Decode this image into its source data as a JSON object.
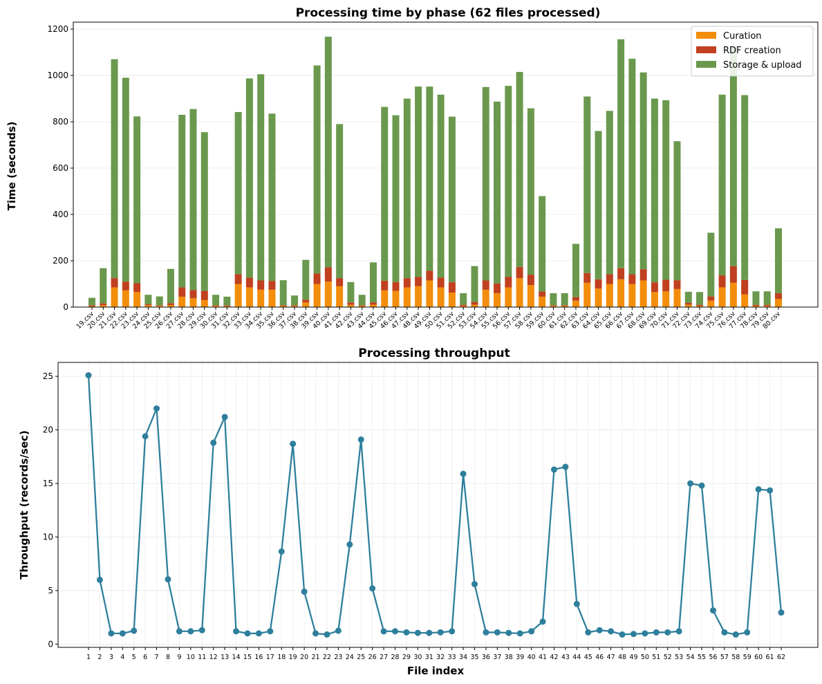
{
  "chart_data": [
    {
      "type": "bar",
      "stacked": true,
      "title": "Processing time by phase (62 files processed)",
      "xlabel": "",
      "ylabel": "Time (seconds)",
      "ylim": [
        0,
        1230
      ],
      "yticks": [
        0,
        200,
        400,
        600,
        800,
        1000,
        1200
      ],
      "grid": true,
      "legend_position": "top-right",
      "categories": [
        "19.csv",
        "20.csv",
        "21.csv",
        "22.csv",
        "23.csv",
        "24.csv",
        "25.csv",
        "26.csv",
        "27.csv",
        "28.csv",
        "29.csv",
        "30.csv",
        "31.csv",
        "32.csv",
        "33.csv",
        "34.csv",
        "35.csv",
        "36.csv",
        "37.csv",
        "38.csv",
        "39.csv",
        "40.csv",
        "41.csv",
        "42.csv",
        "43.csv",
        "44.csv",
        "45.csv",
        "46.csv",
        "47.csv",
        "48.csv",
        "49.csv",
        "50.csv",
        "51.csv",
        "52.csv",
        "53.csv",
        "54.csv",
        "55.csv",
        "56.csv",
        "57.csv",
        "58.csv",
        "59.csv",
        "60.csv",
        "61.csv",
        "62.csv",
        "63.csv",
        "64.csv",
        "65.csv",
        "66.csv",
        "67.csv",
        "68.csv",
        "69.csv",
        "70.csv",
        "71.csv",
        "72.csv",
        "73.csv",
        "74.csv",
        "75.csv",
        "76.csv",
        "77.csv",
        "78.csv",
        "79.csv",
        "80.csv"
      ],
      "series": [
        {
          "name": "Curation",
          "color": "#f28e0b",
          "values": [
            4,
            8,
            85,
            72,
            65,
            8,
            5,
            9,
            45,
            38,
            30,
            5,
            4,
            100,
            85,
            75,
            75,
            5,
            5,
            20,
            100,
            110,
            90,
            10,
            5,
            10,
            72,
            70,
            85,
            90,
            115,
            85,
            62,
            5,
            10,
            75,
            60,
            85,
            125,
            95,
            45,
            5,
            5,
            28,
            105,
            80,
            100,
            120,
            100,
            115,
            65,
            68,
            78,
            10,
            5,
            28,
            85,
            105,
            55,
            5,
            5,
            35
          ]
        },
        {
          "name": "RDF creation",
          "color": "#c0401f",
          "values": [
            4,
            8,
            40,
            38,
            38,
            5,
            3,
            8,
            40,
            35,
            40,
            3,
            3,
            42,
            42,
            40,
            38,
            3,
            3,
            12,
            45,
            62,
            35,
            10,
            3,
            10,
            42,
            38,
            40,
            40,
            42,
            42,
            45,
            5,
            12,
            40,
            42,
            45,
            48,
            45,
            22,
            3,
            3,
            15,
            42,
            40,
            42,
            48,
            42,
            48,
            42,
            50,
            38,
            8,
            5,
            18,
            52,
            72,
            62,
            5,
            5,
            25
          ]
        },
        {
          "name": "Storage & upload",
          "color": "#6a994e",
          "values": [
            32,
            152,
            945,
            880,
            720,
            40,
            38,
            148,
            745,
            782,
            685,
            45,
            38,
            700,
            860,
            890,
            722,
            108,
            42,
            172,
            898,
            995,
            665,
            88,
            45,
            173,
            750,
            720,
            775,
            822,
            795,
            790,
            715,
            50,
            155,
            835,
            785,
            825,
            842,
            718,
            412,
            52,
            52,
            230,
            762,
            640,
            705,
            988,
            930,
            850,
            793,
            775,
            600,
            48,
            55,
            275,
            780,
            948,
            798,
            58,
            58,
            280
          ]
        }
      ]
    },
    {
      "type": "line",
      "title": "Processing throughput",
      "xlabel": "File index",
      "ylabel": "Throughput (records/sec)",
      "ylim": [
        -0.3,
        26.3
      ],
      "yticks": [
        0,
        5,
        10,
        15,
        20,
        25
      ],
      "grid": true,
      "x": [
        1,
        2,
        3,
        4,
        5,
        6,
        7,
        8,
        9,
        10,
        11,
        12,
        13,
        14,
        15,
        16,
        17,
        18,
        19,
        20,
        21,
        22,
        23,
        24,
        25,
        26,
        27,
        28,
        29,
        30,
        31,
        32,
        33,
        34,
        35,
        36,
        37,
        38,
        39,
        40,
        41,
        42,
        43,
        44,
        45,
        46,
        47,
        48,
        49,
        50,
        51,
        52,
        53,
        54,
        55,
        56,
        57,
        58,
        59,
        60,
        61,
        62
      ],
      "series": [
        {
          "name": "Throughput",
          "color": "#2e7f9c",
          "values": [
            25.1,
            6.0,
            1.0,
            1.0,
            1.25,
            19.4,
            22.0,
            6.05,
            1.2,
            1.2,
            1.3,
            18.8,
            21.2,
            1.2,
            1.0,
            1.0,
            1.2,
            8.65,
            18.7,
            4.9,
            1.0,
            0.9,
            1.25,
            9.3,
            19.1,
            5.2,
            1.2,
            1.2,
            1.1,
            1.05,
            1.05,
            1.1,
            1.2,
            15.9,
            5.6,
            1.1,
            1.1,
            1.05,
            1.0,
            1.2,
            2.1,
            16.3,
            16.55,
            3.75,
            1.1,
            1.3,
            1.2,
            0.9,
            0.95,
            1.0,
            1.1,
            1.1,
            1.2,
            15.0,
            14.8,
            3.15,
            1.1,
            0.9,
            1.1,
            14.45,
            14.35,
            2.95
          ]
        }
      ]
    }
  ]
}
